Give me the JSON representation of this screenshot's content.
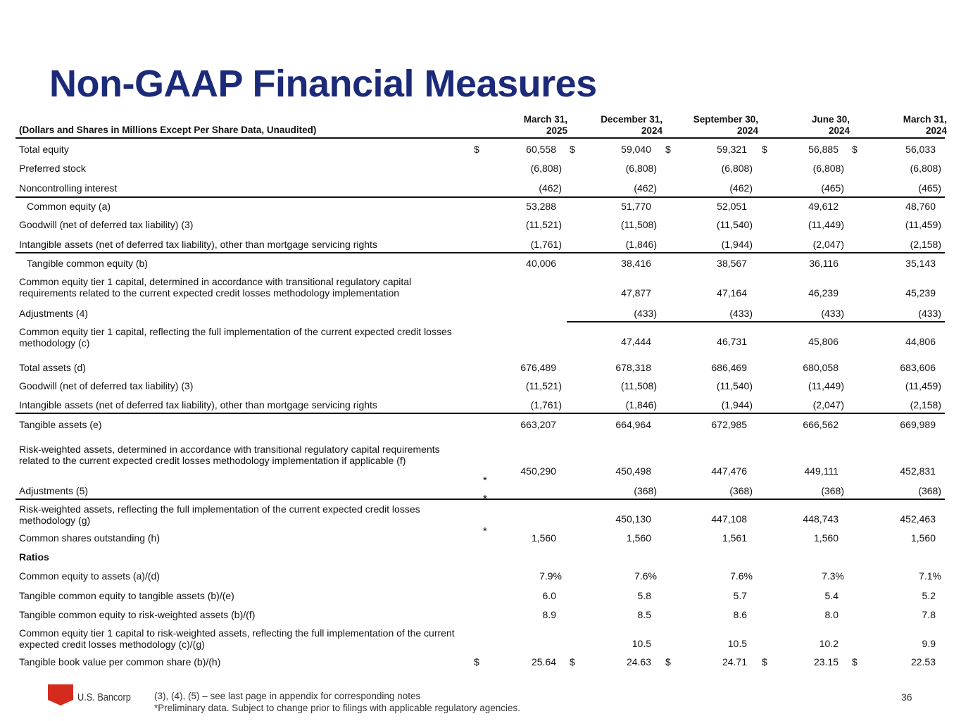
{
  "title": "Non-GAAP Financial Measures",
  "units_label": "(Dollars and Shares in Millions Except Per Share Data, Unaudited)",
  "columns": [
    {
      "line1": "March 31,",
      "line2": "2025"
    },
    {
      "line1": "December 31,",
      "line2": "2024"
    },
    {
      "line1": "September 30,",
      "line2": "2024"
    },
    {
      "line1": "June 30,",
      "line2": "2024"
    },
    {
      "line1": "March 31,",
      "line2": "2024"
    }
  ],
  "rows": [
    {
      "label": "Total equity",
      "values": [
        "60,558",
        "59,040",
        "59,321",
        "56,885",
        "56,033"
      ],
      "dollar": true
    },
    {
      "label": "Preferred stock",
      "values": [
        "(6,808)",
        "(6,808)",
        "(6,808)",
        "(6,808)",
        "(6,808)"
      ]
    },
    {
      "label": "Noncontrolling interest",
      "values": [
        "(462)",
        "(462)",
        "(462)",
        "(465)",
        "(465)"
      ]
    },
    {
      "label": "Common equity (a)",
      "values": [
        "53,288",
        "51,770",
        "52,051",
        "49,612",
        "48,760"
      ],
      "indent": true
    },
    {
      "label": "Goodwill (net of deferred tax liability)  (3)",
      "values": [
        "(11,521)",
        "(11,508)",
        "(11,540)",
        "(11,449)",
        "(11,459)"
      ]
    },
    {
      "label": "Intangible assets (net of deferred tax liability), other than mortgage servicing rights",
      "values": [
        "(1,761)",
        "(1,846)",
        "(1,944)",
        "(2,047)",
        "(2,158)"
      ]
    },
    {
      "label": "Tangible common equity (b)",
      "values": [
        "40,006",
        "38,416",
        "38,567",
        "36,116",
        "35,143"
      ],
      "indent": true
    },
    {
      "label": "Common equity tier 1 capital, determined in accordance with transitional regulatory capital requirements related to the current expected credit losses methodology implementation",
      "values": [
        "",
        "47,877",
        "47,164",
        "46,239",
        "45,239"
      ]
    },
    {
      "label": "Adjustments (4)",
      "values": [
        "",
        "(433)",
        "(433)",
        "(433)",
        "(433)"
      ]
    },
    {
      "label": "Common equity tier 1 capital, reflecting the full implementation of the current expected credit losses methodology (c)",
      "values": [
        "",
        "47,444",
        "46,731",
        "45,806",
        "44,806"
      ]
    },
    {
      "label": "Total assets (d)",
      "values": [
        "676,489",
        "678,318",
        "686,469",
        "680,058",
        "683,606"
      ]
    },
    {
      "label": "Goodwill (net of deferred tax liability) (3)",
      "values": [
        "(11,521)",
        "(11,508)",
        "(11,540)",
        "(11,449)",
        "(11,459)"
      ]
    },
    {
      "label": "Intangible assets (net of deferred tax liability), other than mortgage servicing rights",
      "values": [
        "(1,761)",
        "(1,846)",
        "(1,944)",
        "(2,047)",
        "(2,158)"
      ]
    },
    {
      "label": "Tangible assets (e)",
      "values": [
        "663,207",
        "664,964",
        "672,985",
        "666,562",
        "669,989"
      ]
    },
    {
      "label": "Risk-weighted assets, determined in accordance with transitional regulatory capital requirements related to the current expected credit losses methodology implementation if applicable (f)",
      "values": [
        "450,290",
        "450,498",
        "447,476",
        "449,111",
        "452,831"
      ]
    },
    {
      "label": "Adjustments (5)",
      "values": [
        "",
        "(368)",
        "(368)",
        "(368)",
        "(368)"
      ]
    },
    {
      "label": "Risk-weighted assets, reflecting the full implementation of the current expected credit losses methodology (g)",
      "values": [
        "",
        "450,130",
        "447,108",
        "448,743",
        "452,463"
      ]
    },
    {
      "label": "Common shares outstanding (h)",
      "values": [
        "1,560",
        "1,560",
        "1,561",
        "1,560",
        "1,560"
      ]
    },
    {
      "label": "Ratios",
      "values": [
        "",
        "",
        "",
        "",
        ""
      ],
      "bold": true
    },
    {
      "label": "Common equity to assets (a)/(d)",
      "values": [
        "7.9%",
        "7.6%",
        "7.6%",
        "7.3%",
        "7.1%"
      ]
    },
    {
      "label": "Tangible common equity to tangible assets (b)/(e)",
      "values": [
        "6.0",
        "5.8",
        "5.7",
        "5.4",
        "5.2"
      ]
    },
    {
      "label": "Tangible common equity to risk-weighted assets (b)/(f)",
      "values": [
        "8.9",
        "8.5",
        "8.6",
        "8.0",
        "7.8"
      ]
    },
    {
      "label": "Common equity tier 1 capital to risk-weighted assets, reflecting the full implementation of the current expected credit losses methodology (c)/(g)",
      "values": [
        "",
        "10.5",
        "10.5",
        "10.2",
        "9.9"
      ]
    },
    {
      "label": "Tangible book value per common share (b)/(h)",
      "values": [
        "25.64",
        "24.63",
        "24.71",
        "23.15",
        "22.53"
      ],
      "dollar": true
    }
  ],
  "dollar_sign": "$",
  "asterisk": "*",
  "footer": {
    "brand": "U.S. Bancorp",
    "note1": "(3), (4), (5) – see last page in appendix for corresponding notes",
    "note2": "*Preliminary data. Subject to change prior to filings with applicable regulatory agencies.",
    "page_number": "36"
  },
  "colors": {
    "title": "#1c2a7a",
    "logo": "#d52b1e"
  }
}
